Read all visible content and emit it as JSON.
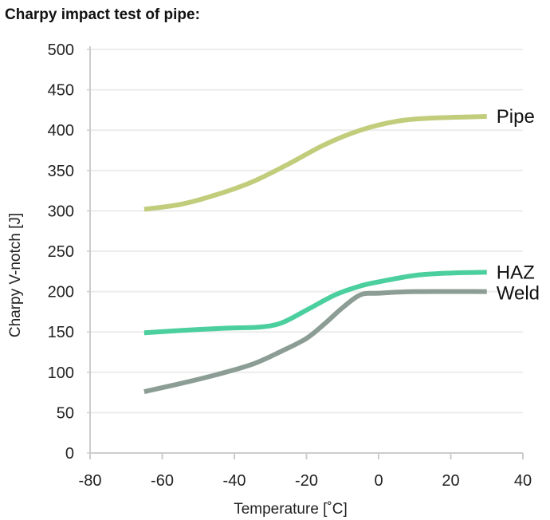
{
  "chart_data": {
    "type": "line",
    "title": "Charpy impact test of pipe:",
    "xlabel": "Temperature [˚C]",
    "ylabel": "Charpy V-notch [J]",
    "xlim": [
      -80,
      40
    ],
    "ylim": [
      0,
      500
    ],
    "xticks": [
      -80,
      -60,
      -40,
      -20,
      0,
      20,
      40
    ],
    "yticks": [
      0,
      50,
      100,
      150,
      200,
      250,
      300,
      350,
      400,
      450,
      500
    ],
    "grid": "horizontal",
    "legend": "inline labels at right end of lines",
    "series": [
      {
        "name": "Pipe",
        "color": "#c2cd7c",
        "x": [
          -65,
          -55,
          -45,
          -35,
          -25,
          -15,
          -5,
          5,
          15,
          30
        ],
        "y": [
          302,
          308,
          320,
          336,
          358,
          382,
          400,
          411,
          415,
          417
        ]
      },
      {
        "name": "HAZ",
        "color": "#4ccf9e",
        "x": [
          -65,
          -50,
          -40,
          -33,
          -27,
          -20,
          -12,
          -5,
          0,
          10,
          20,
          30
        ],
        "y": [
          149,
          153,
          155,
          156,
          161,
          177,
          196,
          207,
          212,
          220,
          223,
          224
        ]
      },
      {
        "name": "Weld",
        "color": "#8c9d95",
        "x": [
          -65,
          -55,
          -45,
          -35,
          -27,
          -20,
          -15,
          -10,
          -5,
          0,
          10,
          30
        ],
        "y": [
          76,
          86,
          97,
          110,
          126,
          142,
          160,
          180,
          196,
          198,
          200,
          200
        ]
      }
    ]
  }
}
